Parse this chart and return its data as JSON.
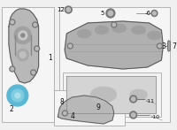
{
  "bg_color": "#f0f0f0",
  "box_bg": "#f7f7f7",
  "part_fill": "#c0c0c0",
  "part_edge": "#555555",
  "seal_blue": "#5bb8d4",
  "seal_blue2": "#3a9abf",
  "text_color": "#111111",
  "line_color": "#555555",
  "figsize": [
    2.0,
    1.47
  ],
  "dpi": 100
}
